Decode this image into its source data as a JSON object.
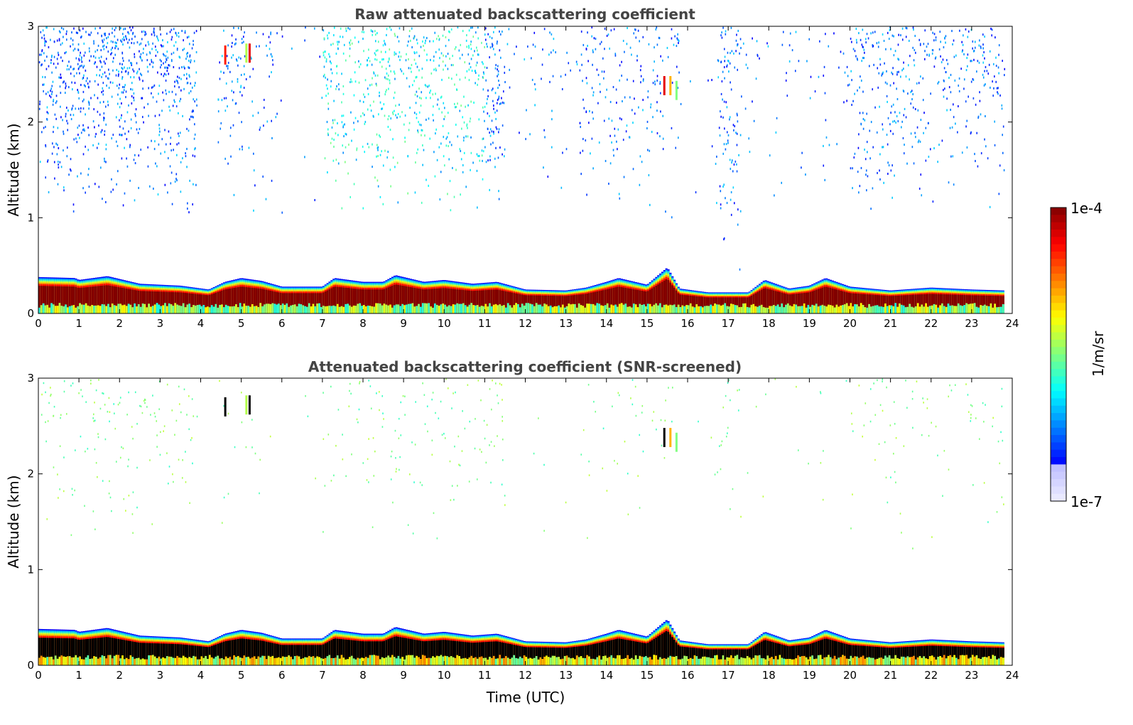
{
  "chart_data": [
    {
      "type": "heatmap",
      "title": "Raw attenuated backscattering coefficient",
      "xlabel": "",
      "ylabel": "Altitude (km)",
      "xlim": [
        0,
        24
      ],
      "ylim": [
        0,
        3
      ],
      "xticks": [
        0,
        1,
        2,
        3,
        4,
        5,
        6,
        7,
        8,
        9,
        10,
        11,
        12,
        13,
        14,
        15,
        16,
        17,
        18,
        19,
        20,
        21,
        22,
        23,
        24
      ],
      "yticks": [
        0,
        1,
        2,
        3
      ],
      "data_end_time": 23.8,
      "boundary_layer_top_km": [
        {
          "t": 0.0,
          "z": 0.38
        },
        {
          "t": 0.9,
          "z": 0.37
        },
        {
          "t": 1.0,
          "z": 0.35
        },
        {
          "t": 1.7,
          "z": 0.39
        },
        {
          "t": 2.5,
          "z": 0.31
        },
        {
          "t": 3.5,
          "z": 0.29
        },
        {
          "t": 4.2,
          "z": 0.25
        },
        {
          "t": 4.6,
          "z": 0.33
        },
        {
          "t": 5.0,
          "z": 0.37
        },
        {
          "t": 5.5,
          "z": 0.34
        },
        {
          "t": 6.0,
          "z": 0.28
        },
        {
          "t": 7.0,
          "z": 0.28
        },
        {
          "t": 7.3,
          "z": 0.37
        },
        {
          "t": 8.0,
          "z": 0.33
        },
        {
          "t": 8.5,
          "z": 0.33
        },
        {
          "t": 8.8,
          "z": 0.4
        },
        {
          "t": 9.5,
          "z": 0.33
        },
        {
          "t": 10.0,
          "z": 0.35
        },
        {
          "t": 10.7,
          "z": 0.31
        },
        {
          "t": 11.3,
          "z": 0.33
        },
        {
          "t": 12.0,
          "z": 0.25
        },
        {
          "t": 13.0,
          "z": 0.24
        },
        {
          "t": 13.5,
          "z": 0.27
        },
        {
          "t": 14.0,
          "z": 0.33
        },
        {
          "t": 14.3,
          "z": 0.37
        },
        {
          "t": 15.0,
          "z": 0.3
        },
        {
          "t": 15.5,
          "z": 0.48
        },
        {
          "t": 15.8,
          "z": 0.26
        },
        {
          "t": 16.5,
          "z": 0.22
        },
        {
          "t": 17.5,
          "z": 0.22
        },
        {
          "t": 17.9,
          "z": 0.35
        },
        {
          "t": 18.5,
          "z": 0.26
        },
        {
          "t": 19.0,
          "z": 0.29
        },
        {
          "t": 19.4,
          "z": 0.37
        },
        {
          "t": 20.0,
          "z": 0.28
        },
        {
          "t": 21.0,
          "z": 0.24
        },
        {
          "t": 22.0,
          "z": 0.27
        },
        {
          "t": 23.0,
          "z": 0.25
        },
        {
          "t": 23.8,
          "z": 0.24
        }
      ]
    },
    {
      "type": "heatmap",
      "title": "Attenuated backscattering coefficient (SNR-screened)",
      "xlabel": "Time (UTC)",
      "ylabel": "Altitude (km)",
      "xlim": [
        0,
        24
      ],
      "ylim": [
        0,
        3
      ],
      "xticks": [
        0,
        1,
        2,
        3,
        4,
        5,
        6,
        7,
        8,
        9,
        10,
        11,
        12,
        13,
        14,
        15,
        16,
        17,
        18,
        19,
        20,
        21,
        22,
        23,
        24
      ],
      "yticks": [
        0,
        1,
        2,
        3
      ],
      "data_end_time": 23.8
    }
  ],
  "colorbar": {
    "label": "1/m/sr",
    "max_label": "1e-4",
    "min_label": "1e-7",
    "scale": "log",
    "colormap": "jet"
  }
}
